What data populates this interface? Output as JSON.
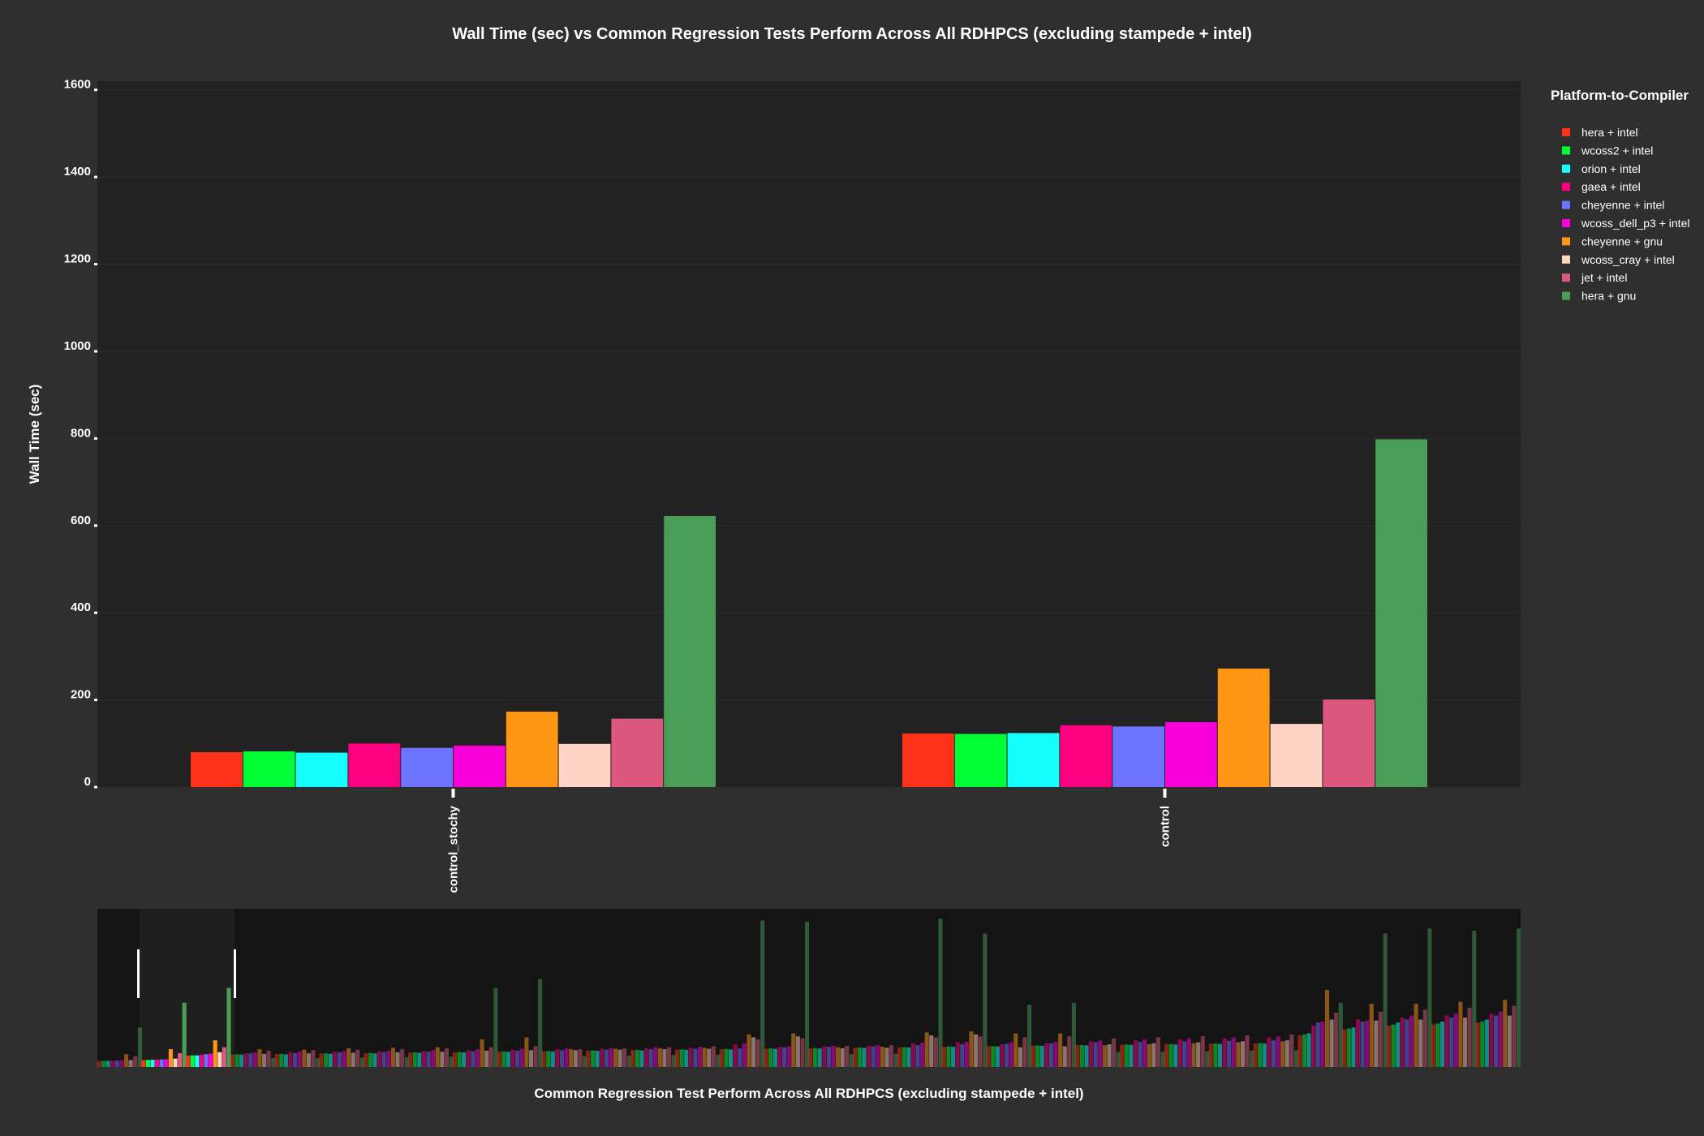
{
  "chart_data": {
    "type": "bar",
    "title": "Wall Time (sec) vs Common Regression Tests Perform Across All RDHPCS (excluding stampede + intel)",
    "xlabel": "Common Regression Test Perform Across All RDHPCS (excluding stampede + intel)",
    "ylabel": "Wall Time (sec)",
    "ylim": [
      0,
      1600
    ],
    "yticks": [
      0,
      200,
      400,
      600,
      800,
      1000,
      1200,
      1400,
      1600
    ],
    "grid": true,
    "legend_title": "Platform-to-Compiler",
    "legend_position": "right",
    "categories": [
      "control_stochy",
      "control"
    ],
    "series": [
      {
        "name": "hera + intel",
        "color": "#ff3118",
        "values": [
          80,
          123
        ]
      },
      {
        "name": "wcoss2 + intel",
        "color": "#00fd35",
        "values": [
          82,
          122
        ]
      },
      {
        "name": "orion + intel",
        "color": "#16ffff",
        "values": [
          79,
          124
        ]
      },
      {
        "name": "gaea + intel",
        "color": "#fc0080",
        "values": [
          100,
          142
        ]
      },
      {
        "name": "cheyenne + intel",
        "color": "#6b73ff",
        "values": [
          90,
          139
        ]
      },
      {
        "name": "wcoss_dell_p3 + intel",
        "color": "#fa00d8",
        "values": [
          95,
          149
        ]
      },
      {
        "name": "cheyenne + gnu",
        "color": "#ff9616",
        "values": [
          173,
          272
        ]
      },
      {
        "name": "wcoss_cray + intel",
        "color": "#ffd4c4",
        "values": [
          99,
          145
        ]
      },
      {
        "name": "jet + intel",
        "color": "#dc587d",
        "values": [
          157,
          201
        ]
      },
      {
        "name": "hera + gnu",
        "color": "#4a9d57",
        "values": [
          622,
          798
        ]
      }
    ],
    "overview": {
      "n_groups": 32,
      "ylim": [
        0,
        1600
      ],
      "selected_groups": [
        1,
        2
      ],
      "groups": [
        [
          60,
          62,
          63,
          65,
          66,
          68,
          130,
          70,
          110,
          400
        ],
        [
          70,
          72,
          73,
          75,
          76,
          78,
          180,
          85,
          140,
          650
        ],
        [
          115,
          118,
          117,
          125,
          130,
          135,
          270,
          150,
          200,
          800
        ],
        [
          125,
          128,
          126,
          140,
          138,
          148,
          180,
          132,
          165,
          90
        ],
        [
          130,
          132,
          128,
          150,
          142,
          158,
          175,
          138,
          170,
          88
        ],
        [
          135,
          138,
          134,
          155,
          148,
          160,
          190,
          145,
          175,
          95
        ],
        [
          140,
          142,
          138,
          158,
          150,
          165,
          195,
          150,
          180,
          100
        ],
        [
          145,
          148,
          144,
          162,
          155,
          170,
          200,
          155,
          190,
          105
        ],
        [
          150,
          152,
          148,
          170,
          160,
          180,
          280,
          165,
          200,
          800
        ],
        [
          155,
          158,
          154,
          175,
          165,
          185,
          300,
          170,
          210,
          890
        ],
        [
          160,
          162,
          158,
          180,
          170,
          190,
          180,
          170,
          180,
          110
        ],
        [
          165,
          168,
          164,
          185,
          175,
          195,
          185,
          175,
          190,
          115
        ],
        [
          170,
          172,
          168,
          190,
          180,
          200,
          190,
          180,
          200,
          120
        ],
        [
          175,
          178,
          174,
          195,
          185,
          205,
          195,
          185,
          210,
          125
        ],
        [
          180,
          182,
          178,
          230,
          190,
          240,
          330,
          300,
          280,
          1480
        ],
        [
          185,
          188,
          184,
          205,
          200,
          210,
          340,
          310,
          290,
          1470
        ],
        [
          190,
          192,
          188,
          210,
          205,
          215,
          200,
          190,
          215,
          130
        ],
        [
          195,
          198,
          194,
          215,
          210,
          220,
          205,
          195,
          220,
          135
        ],
        [
          200,
          202,
          198,
          240,
          220,
          245,
          350,
          320,
          300,
          1500
        ],
        [
          205,
          208,
          204,
          250,
          230,
          255,
          360,
          330,
          310,
          1350
        ],
        [
          210,
          212,
          208,
          230,
          235,
          250,
          340,
          200,
          300,
          630
        ],
        [
          215,
          218,
          214,
          240,
          240,
          255,
          340,
          210,
          310,
          650
        ],
        [
          220,
          222,
          218,
          260,
          250,
          270,
          220,
          230,
          290,
          150
        ],
        [
          225,
          228,
          224,
          270,
          255,
          280,
          230,
          240,
          300,
          155
        ],
        [
          230,
          232,
          228,
          280,
          260,
          290,
          240,
          250,
          310,
          160
        ],
        [
          235,
          238,
          234,
          290,
          265,
          300,
          250,
          260,
          320,
          165
        ],
        [
          240,
          242,
          238,
          300,
          270,
          310,
          260,
          270,
          330,
          170
        ],
        [
          320,
          330,
          340,
          420,
          450,
          460,
          780,
          480,
          550,
          650
        ],
        [
          380,
          390,
          400,
          480,
          460,
          470,
          640,
          470,
          560,
          1350
        ],
        [
          420,
          430,
          450,
          500,
          480,
          520,
          640,
          480,
          580,
          1400
        ],
        [
          430,
          440,
          460,
          520,
          500,
          540,
          660,
          500,
          600,
          1380
        ],
        [
          450,
          460,
          480,
          540,
          520,
          560,
          680,
          520,
          620,
          1400
        ]
      ]
    }
  }
}
